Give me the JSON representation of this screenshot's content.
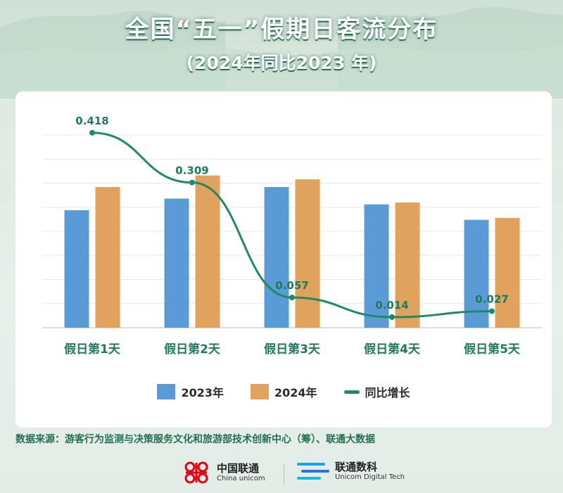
{
  "header": {
    "title": "全国“五一”假期日客流分布",
    "subtitle": "(2024年同比2023 年)"
  },
  "colors": {
    "series_2023": "#5b9bd5",
    "series_2024": "#e0a25c",
    "growth_line": "#1f8a66",
    "label_green": "#1f7a5d"
  },
  "chart_data": {
    "type": "bar",
    "categories": [
      "假日第1天",
      "假日第2天",
      "假日第3天",
      "假日第4天",
      "假日第5天"
    ],
    "ylim": [
      0,
      1.0
    ],
    "grid": true,
    "series": [
      {
        "name": "2023年",
        "type": "bar",
        "values": [
          0.61,
          0.67,
          0.73,
          0.64,
          0.56
        ]
      },
      {
        "name": "2024年",
        "type": "bar",
        "values": [
          0.73,
          0.79,
          0.77,
          0.65,
          0.57
        ]
      },
      {
        "name": "同比增长",
        "type": "line",
        "values": [
          0.418,
          0.309,
          0.057,
          0.014,
          0.027
        ],
        "labels": [
          "0.418",
          "0.309",
          "0.057",
          "0.014",
          "0.027"
        ]
      }
    ],
    "legend_position": "bottom"
  },
  "footer": {
    "source": "数据来源：游客行为监测与决策服务文化和旅游部技术创新中心（筹）、联通大数据",
    "logo_left_main": "中国联通",
    "logo_left_sub": "China unicom",
    "logo_right_main": "联通数科",
    "logo_right_sub": "Unicom Digital Tech"
  }
}
